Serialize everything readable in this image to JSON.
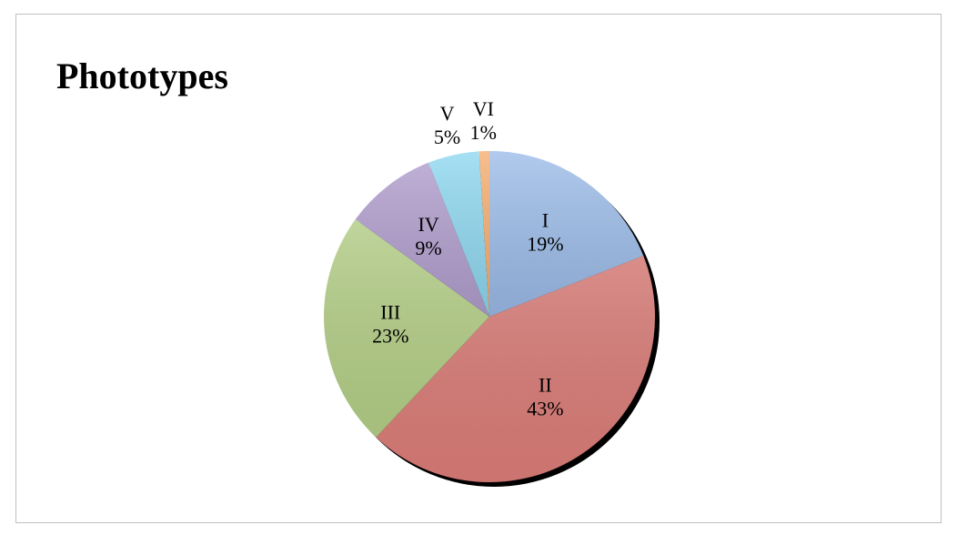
{
  "chart_data": {
    "type": "pie",
    "title": "Phototypes",
    "categories": [
      "I",
      "II",
      "III",
      "IV",
      "V",
      "VI"
    ],
    "values": [
      19,
      43,
      23,
      9,
      5,
      1
    ],
    "value_labels": [
      "19%",
      "43%",
      "23%",
      "9%",
      "5%",
      "1%"
    ],
    "colors": [
      "#8fb3e6",
      "#e8847f",
      "#bcd98b",
      "#a892c8",
      "#7fd2ee",
      "#f5a25c"
    ]
  }
}
